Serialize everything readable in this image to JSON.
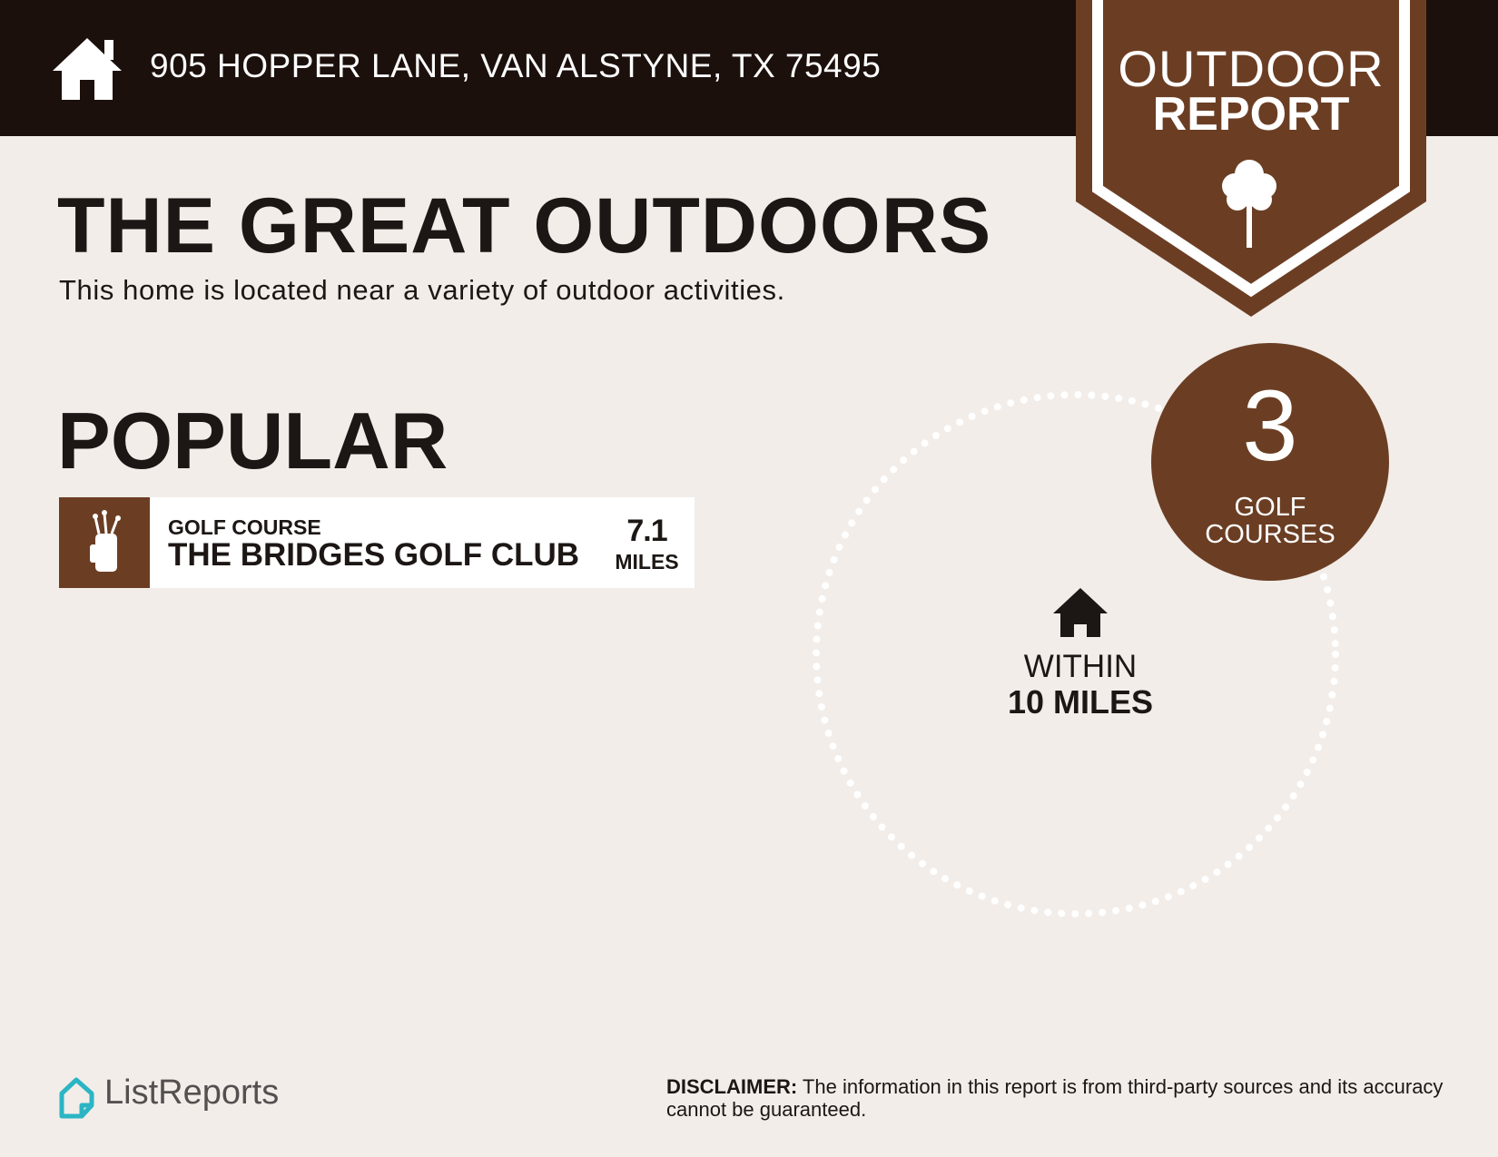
{
  "header": {
    "address": "905 HOPPER LANE, VAN ALSTYNE, TX 75495",
    "icon": "home-icon"
  },
  "badge": {
    "line1": "OUTDOOR",
    "line2": "REPORT",
    "icon": "tree-icon"
  },
  "main": {
    "title": "THE GREAT OUTDOORS",
    "subtitle": "This home is located near a variety of outdoor activities.",
    "section": "POPULAR",
    "places": [
      {
        "category": "GOLF COURSE",
        "name": "THE BRIDGES GOLF CLUB",
        "distance": "7.1",
        "unit": "MILES",
        "icon": "golf-bag-icon"
      }
    ]
  },
  "summary": {
    "count": "3",
    "label_line1": "GOLF",
    "label_line2": "COURSES",
    "within_line1": "WITHIN",
    "within_line2": "10 MILES"
  },
  "footer": {
    "logo": "ListReports",
    "disclaimer_label": "DISCLAIMER:",
    "disclaimer_text": " The information in this report is from third-party sources and its accuracy cannot be guaranteed."
  },
  "colors": {
    "header": "#1c100d",
    "brown": "#6b3e24",
    "background": "#f2ede9",
    "logo": "#2bb5c4"
  }
}
